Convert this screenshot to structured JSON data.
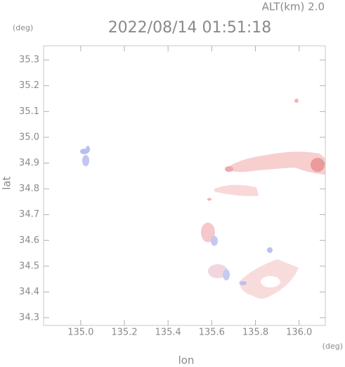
{
  "chart_data": {
    "type": "radar-map",
    "title": "2022/08/14 01:51:18",
    "altitude_label": "ALT(km) 2.0",
    "y_unit": "(deg)",
    "x_unit": "(deg)",
    "x_label": "lon",
    "y_label": "lat",
    "xlim": [
      134.83,
      136.12
    ],
    "ylim": [
      34.27,
      35.355
    ],
    "xticks": [
      {
        "value": 135.0,
        "label": "135.0"
      },
      135.2,
      135.4,
      135.6,
      135.8,
      {
        "value": 136.0,
        "label": "136.0"
      }
    ],
    "yticks": [
      34.3,
      34.4,
      34.5,
      34.6,
      34.7,
      34.8,
      34.9,
      {
        "value": 35.0,
        "label": "35.0"
      },
      35.1,
      35.2,
      35.3
    ]
  }
}
